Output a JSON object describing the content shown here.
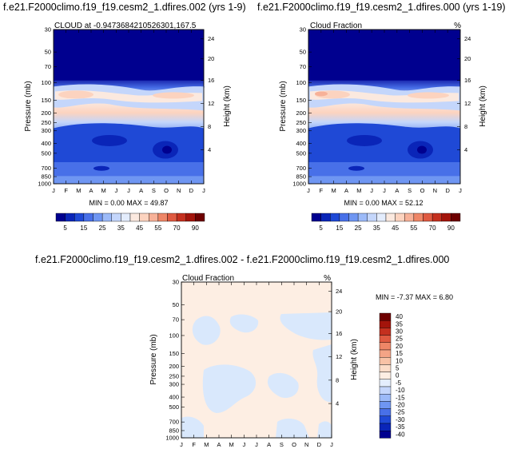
{
  "chart_data": [
    {
      "type": "heatmap",
      "title": "f.e21.F2000climo.f19_f19.cesm2_1.dfires.002 (yrs 1-9)",
      "subtitle_left": "CLOUD at -0.9473684210526301,167.5",
      "subtitle_right": "",
      "xlabel": "",
      "ylabel": "Pressure (mb)",
      "ylabel_right": "Height (km)",
      "x_ticks": [
        "J",
        "F",
        "M",
        "A",
        "M",
        "J",
        "J",
        "A",
        "S",
        "O",
        "N",
        "D",
        "J"
      ],
      "y_ticks": [
        "30",
        "50",
        "70",
        "100",
        "150",
        "200",
        "250",
        "300",
        "400",
        "500",
        "700",
        "850",
        "1000"
      ],
      "y_right_ticks": [
        "24",
        "20",
        "16",
        "12",
        "8",
        "4"
      ],
      "stats": "MIN =   0.00 MAX =  49.87",
      "colorbar_labels": [
        "5",
        "15",
        "25",
        "35",
        "45",
        "55",
        "70",
        "90"
      ],
      "levels": [
        5,
        10,
        15,
        20,
        25,
        30,
        35,
        40,
        45,
        50,
        55,
        60,
        70,
        80,
        90
      ],
      "profile_levels": [
        "30",
        "50",
        "70",
        "100",
        "150",
        "200",
        "250",
        "300",
        "400",
        "500",
        "700",
        "850",
        "1000"
      ],
      "monthly_mean_profile_percent": [
        0,
        0,
        5,
        34,
        40,
        24,
        18,
        14,
        11,
        8,
        10,
        10,
        12
      ]
    },
    {
      "type": "heatmap",
      "title": "f.e21.F2000climo.f19_f19.cesm2_1.dfires.000 (yrs 1-19)",
      "subtitle_left": "Cloud Fraction",
      "subtitle_right": "%",
      "xlabel": "",
      "ylabel": "Pressure (mb)",
      "ylabel_right": "Height (km)",
      "x_ticks": [
        "J",
        "F",
        "M",
        "A",
        "M",
        "J",
        "J",
        "A",
        "S",
        "O",
        "N",
        "D",
        "J"
      ],
      "y_ticks": [
        "30",
        "50",
        "70",
        "100",
        "150",
        "200",
        "250",
        "300",
        "400",
        "500",
        "700",
        "850",
        "1000"
      ],
      "y_right_ticks": [
        "24",
        "20",
        "16",
        "12",
        "8",
        "4"
      ],
      "stats": "MIN =   0.00 MAX =  52.12",
      "colorbar_labels": [
        "5",
        "15",
        "25",
        "35",
        "45",
        "55",
        "70",
        "90"
      ],
      "levels": [
        5,
        10,
        15,
        20,
        25,
        30,
        35,
        40,
        45,
        50,
        55,
        60,
        70,
        80,
        90
      ],
      "profile_levels": [
        "30",
        "50",
        "70",
        "100",
        "150",
        "200",
        "250",
        "300",
        "400",
        "500",
        "700",
        "850",
        "1000"
      ],
      "monthly_mean_profile_percent": [
        0,
        0,
        5,
        36,
        41,
        25,
        18,
        14,
        11,
        8,
        10,
        10,
        12
      ]
    },
    {
      "type": "heatmap",
      "title": "f.e21.F2000climo.f19_f19.cesm2_1.dfires.002 - f.e21.F2000climo.f19_f19.cesm2_1.dfires.000",
      "subtitle_left": "Cloud Fraction",
      "subtitle_right": "%",
      "xlabel": "",
      "ylabel": "Pressure (mb)",
      "ylabel_right": "Height (km)",
      "x_ticks": [
        "J",
        "F",
        "M",
        "A",
        "M",
        "J",
        "J",
        "A",
        "S",
        "O",
        "N",
        "D",
        "J"
      ],
      "y_ticks": [
        "30",
        "50",
        "70",
        "100",
        "150",
        "200",
        "250",
        "300",
        "400",
        "500",
        "700",
        "850",
        "1000"
      ],
      "y_right_ticks": [
        "24",
        "20",
        "16",
        "12",
        "8",
        "4"
      ],
      "stats": "MIN =  -7.37 MAX =   6.80",
      "colorbar_labels": [
        "40",
        "35",
        "30",
        "25",
        "20",
        "15",
        "10",
        "5",
        "0",
        "-5",
        "-10",
        "-15",
        "-20",
        "-25",
        "-30",
        "-35",
        "-40"
      ],
      "levels": [
        -40,
        -35,
        -30,
        -25,
        -20,
        -15,
        -10,
        -5,
        0,
        5,
        10,
        15,
        20,
        25,
        30,
        35,
        40
      ],
      "fill_classes_present": [
        "0 to 5",
        "-5 to 0"
      ]
    }
  ],
  "colors": {
    "full_scale": [
      "#00008f",
      "#0a25b8",
      "#1f49d6",
      "#4870e8",
      "#6f96f2",
      "#9cbaf8",
      "#c4d6fb",
      "#e3ecfc",
      "#fbe9df",
      "#fcd3bf",
      "#f7b198",
      "#ee8667",
      "#df5a41",
      "#c4301f",
      "#a3140b",
      "#6e0000"
    ],
    "diff_scale": [
      "#6e0000",
      "#a3140b",
      "#c4301f",
      "#df5a41",
      "#ee8667",
      "#f4a486",
      "#f8c2a6",
      "#fbdcc8",
      "#fdeee3",
      "#e4eefd",
      "#c4d6fb",
      "#9cbaf8",
      "#6f96f2",
      "#4870e8",
      "#1f49d6",
      "#0a25b8",
      "#00008f"
    ],
    "diff_positive": "#fdeee3",
    "diff_negative": "#d9e8fc"
  }
}
